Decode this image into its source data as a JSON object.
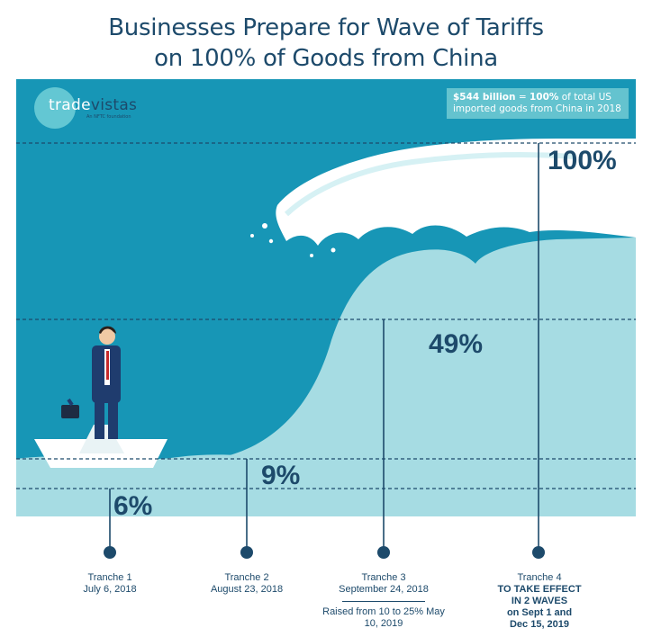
{
  "title": {
    "line1": "Businesses Prepare for Wave of Tariffs",
    "line2": "on 100% of Goods from China"
  },
  "logo": {
    "word_trade": "trade",
    "word_vistas": "vistas",
    "sub": "An NFTC foundation"
  },
  "callout": {
    "bold_amount": "$544 billion",
    "eq": " = ",
    "bold_pct": "100%",
    "rest": " of total US imported goods from China in 2018"
  },
  "chart_data": {
    "type": "bar",
    "subtype": "cumulative-percentage-levels",
    "y_unit": "% of total US imported goods from China in 2018",
    "ylim": [
      0,
      100
    ],
    "categories": [
      "Tranche 1",
      "Tranche 2",
      "Tranche 3",
      "Tranche 4"
    ],
    "values": [
      6,
      9,
      49,
      100
    ],
    "value_labels": [
      "6%",
      "9%",
      "49%",
      "100%"
    ],
    "dates": [
      "July 6, 2018",
      "August 23, 2018",
      "September 24, 2018",
      ""
    ],
    "notes": [
      "",
      "",
      "Raised from 10 to 25% May 10, 2019",
      "TO TAKE EFFECT IN 2 WAVES on Sept 1 and Dec 15, 2019"
    ],
    "grid": "dashed horizontal lines at each level",
    "colors": {
      "background": "#1796b6",
      "wave": "#a6dce3",
      "line": "#1d4a6b",
      "callout": "#64c3cf"
    }
  },
  "tranches": [
    {
      "name": "Tranche 1",
      "date": "July 6, 2018"
    },
    {
      "name": "Tranche 2",
      "date": "August 23, 2018"
    },
    {
      "name": "Tranche 3",
      "date": "September 24, 2018",
      "note": "Raised from 10 to 25% May 10, 2019"
    },
    {
      "name": "Tranche 4",
      "note_lines": [
        "TO TAKE EFFECT",
        "IN 2 WAVES",
        "on Sept 1 and",
        "Dec 15, 2019"
      ]
    }
  ],
  "illustration": {
    "boat": "paper-boat",
    "figure": "businessman-with-briefcase",
    "wave": "big-wave"
  }
}
